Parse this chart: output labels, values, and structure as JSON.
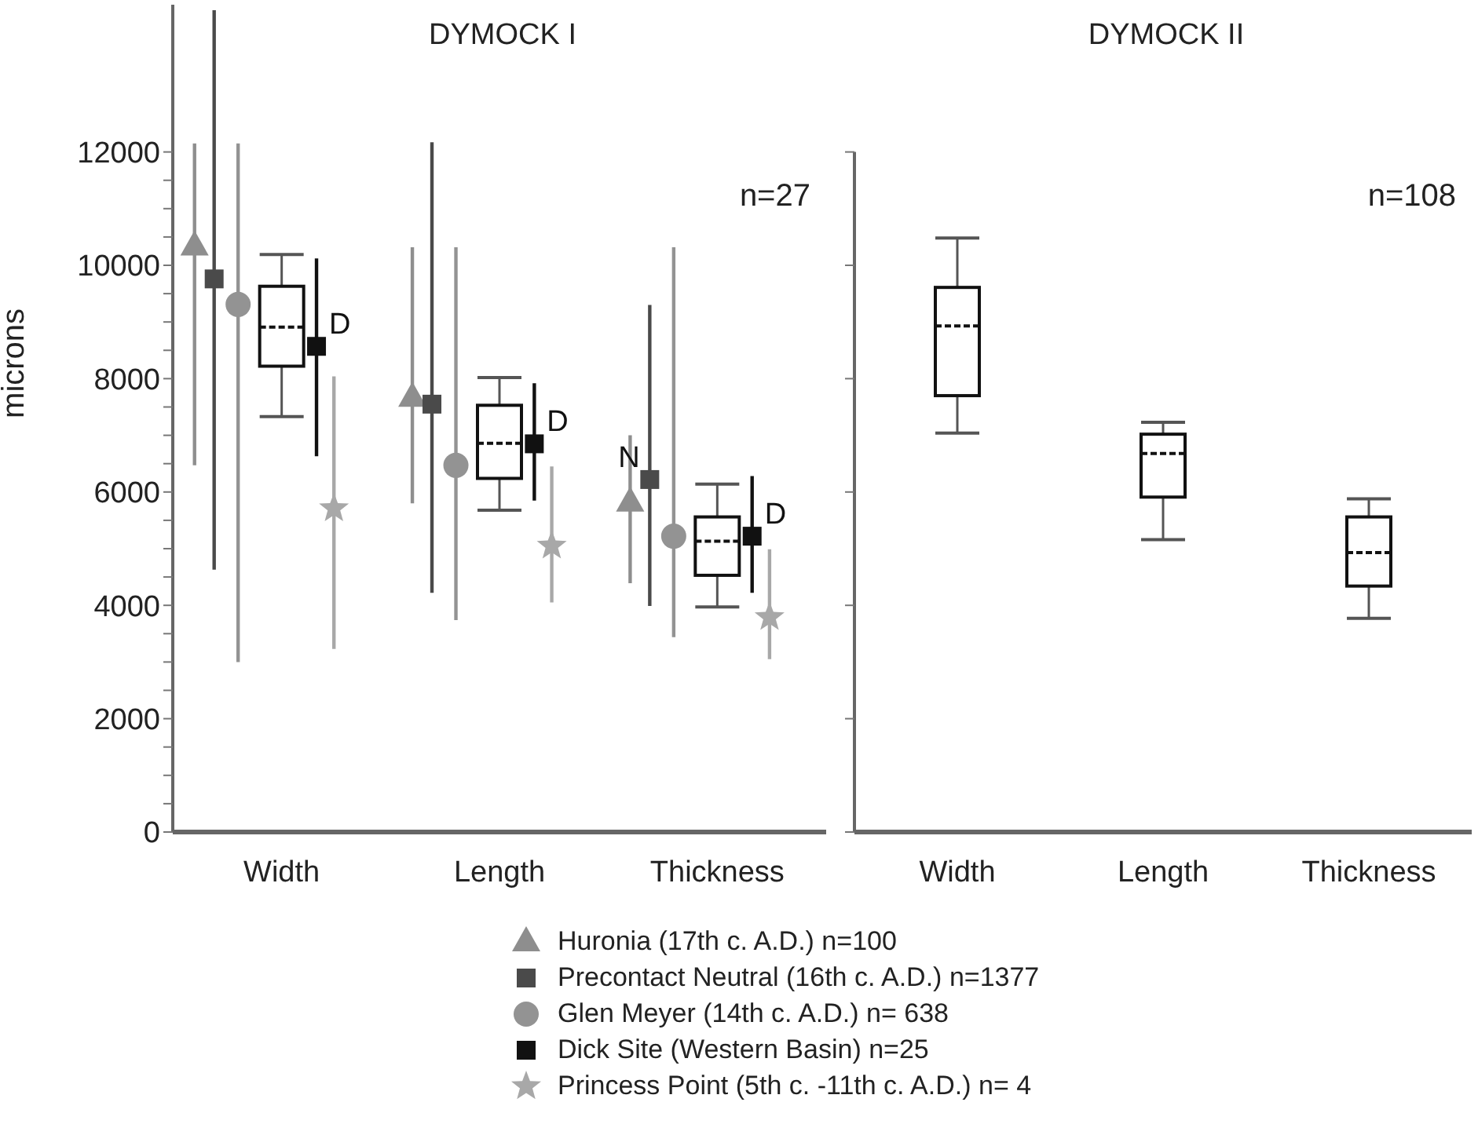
{
  "chart_data": [
    {
      "type": "box",
      "title": "DYMOCK I",
      "ylabel": "microns",
      "categories": [
        "Width",
        "Length",
        "Thickness"
      ],
      "boxes": [
        {
          "low": 7330,
          "q1": 8220,
          "median": 8910,
          "q3": 9630,
          "high": 10190
        },
        {
          "low": 5680,
          "q1": 6240,
          "median": 6860,
          "q3": 7530,
          "high": 8020
        },
        {
          "low": 3970,
          "q1": 4530,
          "median": 5130,
          "q3": 5560,
          "high": 6140
        }
      ],
      "series": [
        {
          "type": "scatter",
          "name": "Huronia (17th c. A.D.) n=100",
          "color": "#8e8e8e",
          "marker": "triangle",
          "x": [
            "Width",
            "Length",
            "Thickness"
          ],
          "values": [
            10340,
            7670,
            5820
          ],
          "errors": [
            [
              6470,
              12150
            ],
            [
              5800,
              10320
            ],
            [
              4390,
              7000
            ]
          ]
        },
        {
          "type": "scatter",
          "name": "Precontact Neutral (16th c. A.D.) n=1377",
          "color": "#4a4a4a",
          "marker": "square",
          "x": [
            "Width",
            "Length",
            "Thickness"
          ],
          "values": [
            9760,
            7550,
            6220
          ],
          "errors": [
            [
              4630,
              14500
            ],
            [
              4220,
              12170
            ],
            [
              3990,
              9300
            ]
          ],
          "value_labels": [
            null,
            null,
            "N"
          ]
        },
        {
          "type": "scatter",
          "name": "Glen Meyer (14th c. A.D.) n= 638",
          "color": "#939393",
          "marker": "circle",
          "x": [
            "Width",
            "Length",
            "Thickness"
          ],
          "values": [
            9310,
            6470,
            5220
          ],
          "errors": [
            [
              3000,
              12150
            ],
            [
              3740,
              10320
            ],
            [
              3440,
              10320
            ]
          ]
        },
        {
          "type": "scatter",
          "name": "Dick Site (Western Basin) n=25",
          "color": "#111111",
          "marker": "square",
          "x": [
            "Width",
            "Length",
            "Thickness"
          ],
          "values": [
            8570,
            6850,
            5220
          ],
          "errors": [
            [
              6630,
              10120
            ],
            [
              5850,
              7920
            ],
            [
              4220,
              6280
            ]
          ],
          "value_labels": [
            "D",
            "D",
            "D"
          ]
        },
        {
          "type": "scatter",
          "name": "Princess Point (5th c. -11th c. A.D.) n= 4",
          "color": "#a8a8a8",
          "marker": "star",
          "x": [
            "Width",
            "Length",
            "Thickness"
          ],
          "values": [
            5710,
            5050,
            3790
          ],
          "errors": [
            [
              3230,
              8040
            ],
            [
              4050,
              6450
            ],
            [
              3050,
              4990
            ]
          ]
        }
      ],
      "ylim": [
        0,
        14600
      ],
      "yticks": [
        0,
        {
          "value": 500,
          "label": null
        },
        {
          "value": 1000,
          "label": null
        },
        {
          "value": 1500,
          "label": null
        },
        2000,
        {
          "value": 2500,
          "label": null
        },
        {
          "value": 3000,
          "label": null
        },
        {
          "value": 3500,
          "label": null
        },
        4000,
        {
          "value": 4500,
          "label": null
        },
        {
          "value": 5000,
          "label": null
        },
        {
          "value": 5500,
          "label": null
        },
        6000,
        {
          "value": 6500,
          "label": null
        },
        {
          "value": 7000,
          "label": null
        },
        {
          "value": 7500,
          "label": null
        },
        8000,
        {
          "value": 8500,
          "label": null
        },
        {
          "value": 9000,
          "label": null
        },
        {
          "value": 9500,
          "label": null
        },
        10000,
        {
          "value": 10500,
          "label": null
        },
        {
          "value": 11000,
          "label": null
        },
        {
          "value": 11500,
          "label": null
        },
        12000
      ],
      "legend": "bottom",
      "annotations": [
        "n=27"
      ]
    },
    {
      "type": "box",
      "title": "DYMOCK II",
      "categories": [
        "Width",
        "Length",
        "Thickness"
      ],
      "boxes": [
        {
          "low": 7040,
          "q1": 7700,
          "median": 8930,
          "q3": 9610,
          "high": 10480
        },
        {
          "low": 5160,
          "q1": 5910,
          "median": 6680,
          "q3": 7020,
          "high": 7230
        },
        {
          "low": 3770,
          "q1": 4340,
          "median": 4930,
          "q3": 5560,
          "high": 5880
        }
      ],
      "ylim": [
        0,
        12000
      ],
      "yticks": [
        0,
        2000,
        4000,
        6000,
        8000,
        10000,
        12000
      ],
      "tick_labels": "x",
      "annotations": [
        "n=108"
      ]
    }
  ]
}
